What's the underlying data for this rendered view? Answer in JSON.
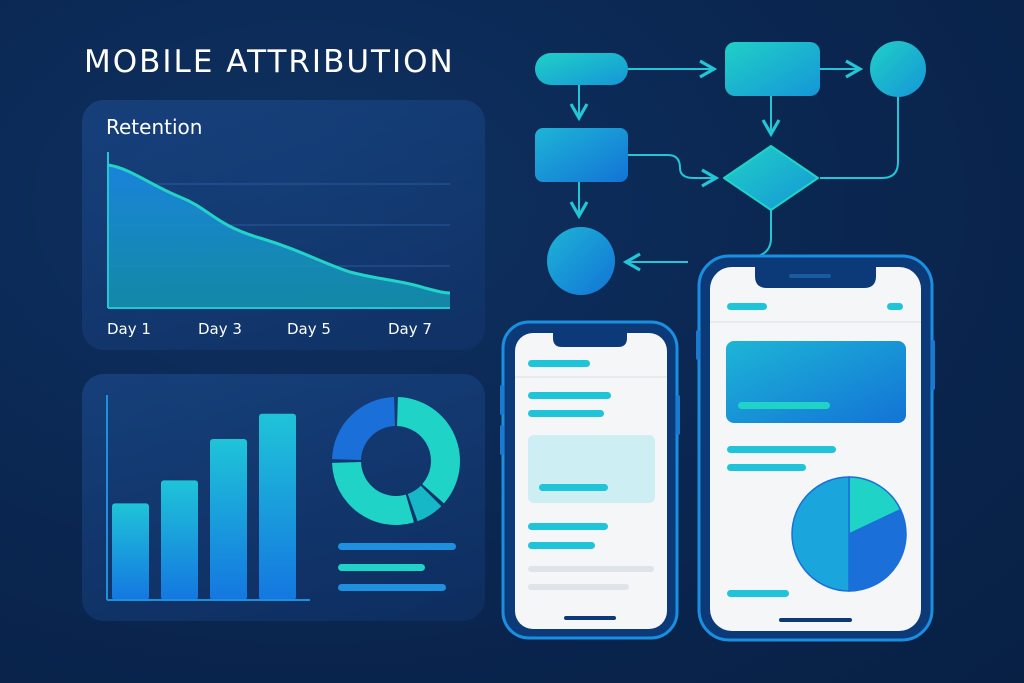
{
  "title": "MOBILE ATTRIBUTION",
  "retention": {
    "label": "Retention",
    "days": [
      "Day 1",
      "Day 3",
      "Day 5",
      "Day 7"
    ]
  },
  "colors": {
    "background": "#0a2650",
    "accent_teal": "#1fd3c6",
    "accent_blue": "#1a86e0",
    "text": "#ffffff"
  },
  "chart_data": [
    {
      "type": "area",
      "title": "Retention",
      "categories": [
        "Day 1",
        "Day 3",
        "Day 5",
        "Day 7"
      ],
      "values": [
        95,
        72,
        55,
        8
      ],
      "grid": true
    },
    {
      "type": "bar",
      "values": [
        42,
        52,
        70,
        81
      ],
      "grid": false
    },
    {
      "type": "pie",
      "style": "donut",
      "values": [
        37,
        8,
        30,
        25
      ]
    }
  ]
}
